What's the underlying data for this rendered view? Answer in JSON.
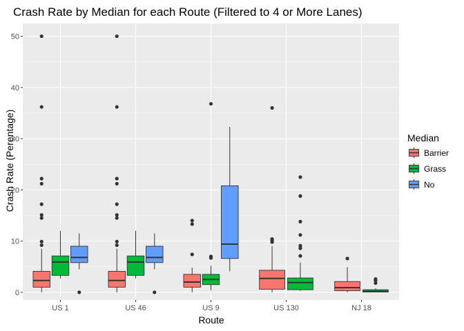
{
  "chart_data": {
    "type": "boxplot",
    "title": "Crash Rate by Median for each Route (Filtered to 4 or More Lanes)",
    "xlabel": "Route",
    "ylabel": "Crash Rate (Perentage)",
    "categories": [
      "US 1",
      "US 46",
      "US 9",
      "US 130",
      "NJ 18"
    ],
    "ylim": [
      -1.5,
      52.5
    ],
    "yticks": [
      0,
      10,
      20,
      30,
      40,
      50
    ],
    "grid": true,
    "legend": {
      "title": "Median",
      "position": "right",
      "entries": [
        "Barrier",
        "Grass",
        "No"
      ]
    },
    "series": [
      {
        "name": "Barrier",
        "color": "#f8766d",
        "boxes": [
          {
            "category": "US 1",
            "min": 0,
            "q1": 1.0,
            "median": 2.3,
            "q3": 4.1,
            "max": 8.5,
            "outliers": [
              9.2,
              9.9,
              14.5,
              15.1,
              17.2,
              21.2,
              22.2,
              36.2,
              50.0
            ]
          },
          {
            "category": "US 46",
            "min": 0,
            "q1": 1.0,
            "median": 2.3,
            "q3": 4.1,
            "max": 8.5,
            "outliers": [
              9.2,
              9.9,
              14.5,
              15.1,
              17.2,
              21.2,
              22.2,
              36.2,
              50.0
            ]
          },
          {
            "category": "US 9",
            "min": 0,
            "q1": 1.0,
            "median": 2.0,
            "q3": 3.5,
            "max": 4.8,
            "outliers": [
              7.4,
              13.3,
              14.0
            ]
          },
          {
            "category": "US 130",
            "min": 0,
            "q1": 0.6,
            "median": 2.7,
            "q3": 4.3,
            "max": 9.0,
            "outliers": [
              9.8,
              10.1,
              10.4,
              36.0
            ]
          },
          {
            "category": "NJ 18",
            "min": 0,
            "q1": 0.3,
            "median": 0.9,
            "q3": 2.1,
            "max": 4.9,
            "outliers": [
              6.6
            ]
          }
        ]
      },
      {
        "name": "Grass",
        "color": "#00ba38",
        "boxes": [
          {
            "category": "US 1",
            "min": 2.7,
            "q1": 3.3,
            "median": 5.9,
            "q3": 7.1,
            "max": 12.0,
            "outliers": []
          },
          {
            "category": "US 46",
            "min": 2.7,
            "q1": 3.3,
            "median": 5.9,
            "q3": 7.1,
            "max": 12.0,
            "outliers": []
          },
          {
            "category": "US 9",
            "min": 0.4,
            "q1": 1.5,
            "median": 2.5,
            "q3": 3.5,
            "max": 5.2,
            "outliers": [
              6.7,
              7.0,
              36.8
            ]
          },
          {
            "category": "US 130",
            "min": 0.3,
            "q1": 0.5,
            "median": 1.9,
            "q3": 2.8,
            "max": 5.8,
            "outliers": [
              7.1,
              8.6,
              9.1,
              11.2,
              13.8,
              18.8,
              22.5
            ]
          },
          {
            "category": "NJ 18",
            "min": 0,
            "q1": 0.05,
            "median": 0.2,
            "q3": 0.5,
            "max": 0.8,
            "outliers": [
              1.8,
              2.3,
              2.6
            ]
          }
        ]
      },
      {
        "name": "No",
        "color": "#619cff",
        "boxes": [
          {
            "category": "US 1",
            "min": 4.5,
            "q1": 5.8,
            "median": 6.8,
            "q3": 9.0,
            "max": 11.5,
            "outliers": [
              0.0
            ]
          },
          {
            "category": "US 46",
            "min": 4.5,
            "q1": 5.8,
            "median": 6.8,
            "q3": 9.0,
            "max": 11.5,
            "outliers": [
              0.0
            ]
          },
          {
            "category": "US 9",
            "min": 4.1,
            "q1": 6.6,
            "median": 9.4,
            "q3": 20.8,
            "max": 32.3,
            "outliers": []
          }
        ]
      }
    ]
  }
}
